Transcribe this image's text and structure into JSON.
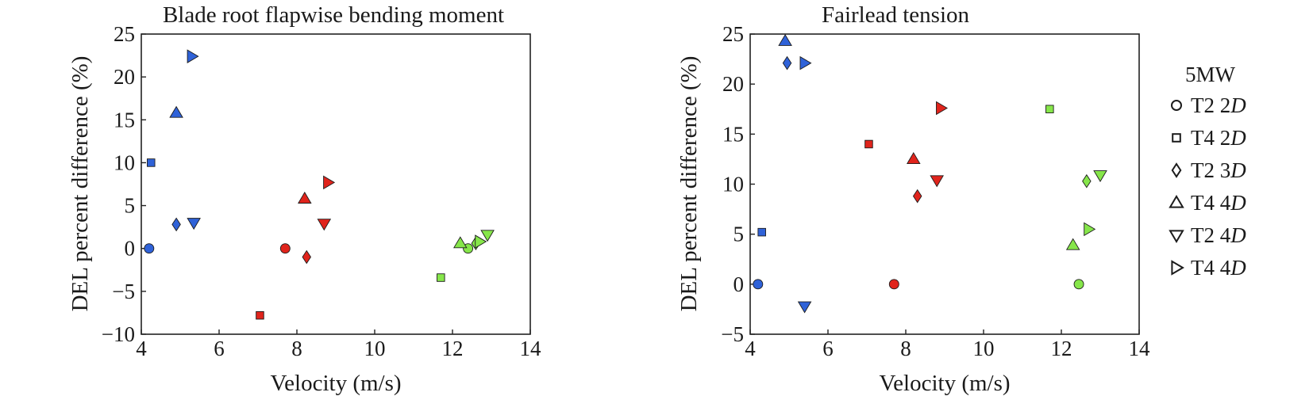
{
  "chart_data": [
    {
      "type": "scatter",
      "title": "Blade root flapwise bending moment",
      "xlabel": "Velocity (m/s)",
      "ylabel": "DEL percent difference (%)",
      "xlim": [
        4,
        14
      ],
      "ylim": [
        -10,
        25
      ],
      "xticks": [
        "4",
        "6",
        "8",
        "10",
        "12",
        "14"
      ],
      "yticks": [
        "−10",
        "−5",
        "0",
        "5",
        "10",
        "15",
        "20",
        "25"
      ],
      "grid": false,
      "points": [
        {
          "x": 4.2,
          "y": 0.0,
          "marker": "circle",
          "color": "#2f62d8"
        },
        {
          "x": 4.25,
          "y": 10.0,
          "marker": "square",
          "color": "#2f62d8"
        },
        {
          "x": 4.9,
          "y": 2.8,
          "marker": "diamond",
          "color": "#2f62d8"
        },
        {
          "x": 4.9,
          "y": 15.8,
          "marker": "triangle-up",
          "color": "#2f62d8"
        },
        {
          "x": 5.35,
          "y": 3.0,
          "marker": "triangle-down",
          "color": "#2f62d8"
        },
        {
          "x": 5.3,
          "y": 22.4,
          "marker": "triangle-right",
          "color": "#2f62d8"
        },
        {
          "x": 7.7,
          "y": 0.0,
          "marker": "circle",
          "color": "#e0241c"
        },
        {
          "x": 7.05,
          "y": -7.8,
          "marker": "square",
          "color": "#e0241c"
        },
        {
          "x": 8.25,
          "y": -1.0,
          "marker": "diamond",
          "color": "#e0241c"
        },
        {
          "x": 8.2,
          "y": 5.8,
          "marker": "triangle-up",
          "color": "#e0241c"
        },
        {
          "x": 8.7,
          "y": 2.9,
          "marker": "triangle-down",
          "color": "#e0241c"
        },
        {
          "x": 8.8,
          "y": 7.7,
          "marker": "triangle-right",
          "color": "#e0241c"
        },
        {
          "x": 12.4,
          "y": 0.0,
          "marker": "circle",
          "color": "#86e64a"
        },
        {
          "x": 11.7,
          "y": -3.4,
          "marker": "square",
          "color": "#86e64a"
        },
        {
          "x": 12.6,
          "y": 0.6,
          "marker": "diamond",
          "color": "#86e64a"
        },
        {
          "x": 12.2,
          "y": 0.6,
          "marker": "triangle-up",
          "color": "#86e64a"
        },
        {
          "x": 12.9,
          "y": 1.6,
          "marker": "triangle-down",
          "color": "#86e64a"
        },
        {
          "x": 12.7,
          "y": 0.8,
          "marker": "triangle-right",
          "color": "#86e64a"
        }
      ]
    },
    {
      "type": "scatter",
      "title": "Fairlead tension",
      "xlabel": "Velocity (m/s)",
      "ylabel": "DEL percent difference (%)",
      "xlim": [
        4,
        14
      ],
      "ylim": [
        -5,
        25
      ],
      "xticks": [
        "4",
        "6",
        "8",
        "10",
        "12",
        "14"
      ],
      "yticks": [
        "−5",
        "0",
        "5",
        "10",
        "15",
        "20",
        "25"
      ],
      "grid": false,
      "points": [
        {
          "x": 4.2,
          "y": 0.0,
          "marker": "circle",
          "color": "#2f62d8"
        },
        {
          "x": 4.3,
          "y": 5.2,
          "marker": "square",
          "color": "#2f62d8"
        },
        {
          "x": 4.95,
          "y": 22.1,
          "marker": "diamond",
          "color": "#2f62d8"
        },
        {
          "x": 4.9,
          "y": 24.3,
          "marker": "triangle-up",
          "color": "#2f62d8"
        },
        {
          "x": 5.4,
          "y": -2.2,
          "marker": "triangle-down",
          "color": "#2f62d8"
        },
        {
          "x": 5.4,
          "y": 22.1,
          "marker": "triangle-right",
          "color": "#2f62d8"
        },
        {
          "x": 7.7,
          "y": 0.0,
          "marker": "circle",
          "color": "#e0241c"
        },
        {
          "x": 7.05,
          "y": 14.0,
          "marker": "square",
          "color": "#e0241c"
        },
        {
          "x": 8.3,
          "y": 8.8,
          "marker": "diamond",
          "color": "#e0241c"
        },
        {
          "x": 8.2,
          "y": 12.5,
          "marker": "triangle-up",
          "color": "#e0241c"
        },
        {
          "x": 8.8,
          "y": 10.4,
          "marker": "triangle-down",
          "color": "#e0241c"
        },
        {
          "x": 8.9,
          "y": 17.6,
          "marker": "triangle-right",
          "color": "#e0241c"
        },
        {
          "x": 12.45,
          "y": 0.0,
          "marker": "circle",
          "color": "#86e64a"
        },
        {
          "x": 11.7,
          "y": 17.5,
          "marker": "square",
          "color": "#86e64a"
        },
        {
          "x": 12.65,
          "y": 10.3,
          "marker": "diamond",
          "color": "#86e64a"
        },
        {
          "x": 12.3,
          "y": 3.9,
          "marker": "triangle-up",
          "color": "#86e64a"
        },
        {
          "x": 13.0,
          "y": 10.9,
          "marker": "triangle-down",
          "color": "#86e64a"
        },
        {
          "x": 12.7,
          "y": 5.5,
          "marker": "triangle-right",
          "color": "#86e64a"
        }
      ]
    }
  ],
  "legend": {
    "placement": "right",
    "heading": "5MW",
    "items": [
      {
        "marker": "circle",
        "prefix": "T2 2",
        "suffix": "D"
      },
      {
        "marker": "square",
        "prefix": "T4 2",
        "suffix": "D"
      },
      {
        "marker": "diamond",
        "prefix": "T2 3",
        "suffix": "D"
      },
      {
        "marker": "triangle-up",
        "prefix": "T4 4",
        "suffix": "D"
      },
      {
        "marker": "triangle-down",
        "prefix": "T2 4",
        "suffix": "D"
      },
      {
        "marker": "triangle-right",
        "prefix": "T4 4",
        "suffix": "D"
      }
    ]
  }
}
